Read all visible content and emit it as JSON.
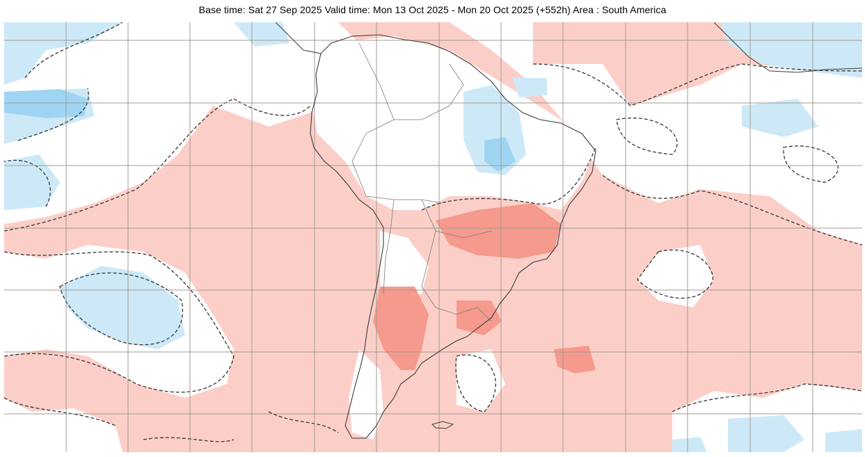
{
  "header": {
    "title": "Base time: Sat 27 Sep 2025 Valid time: Mon 13 Oct 2025 - Mon 20 Oct 2025 (+552h) Area : South America"
  },
  "map": {
    "area": "South America",
    "colors": {
      "ocean_warm": "#fbcfc8",
      "warm_strong": "#f59a8c",
      "cool_light": "#cde9f8",
      "cool_strong": "#9fd5f3",
      "neutral": "#ffffff",
      "grid": "#a09a90",
      "coast": "#3a3a3a"
    }
  }
}
